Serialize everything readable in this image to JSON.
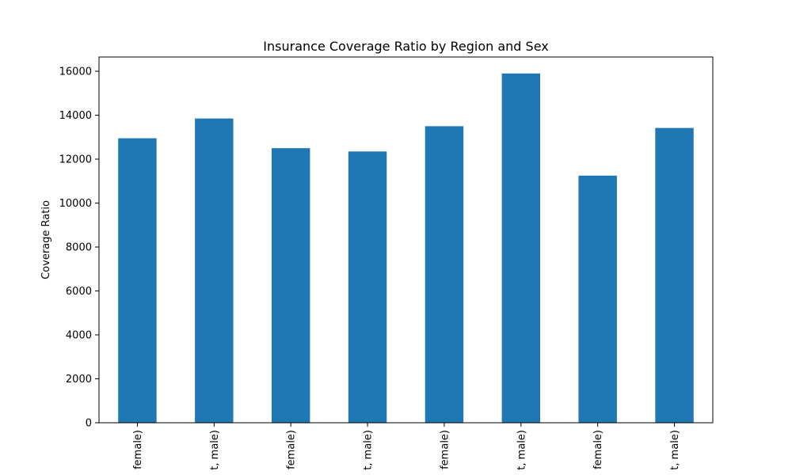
{
  "chart_data": {
    "type": "bar",
    "title": "Insurance Coverage Ratio by Region and Sex",
    "xlabel": "",
    "ylabel": "Coverage Ratio",
    "categories": [
      "female)",
      "t, male)",
      "female)",
      "t, male)",
      "female)",
      "t, male)",
      "female)",
      "t, male)"
    ],
    "values": [
      12950,
      13850,
      12500,
      12350,
      13500,
      15900,
      11250,
      13420
    ],
    "ylim": [
      0,
      16650
    ],
    "yticks": [
      0,
      2000,
      4000,
      6000,
      8000,
      10000,
      12000,
      14000,
      16000
    ],
    "bar_color": "#1f77b4",
    "grid": false,
    "legend": "none"
  }
}
